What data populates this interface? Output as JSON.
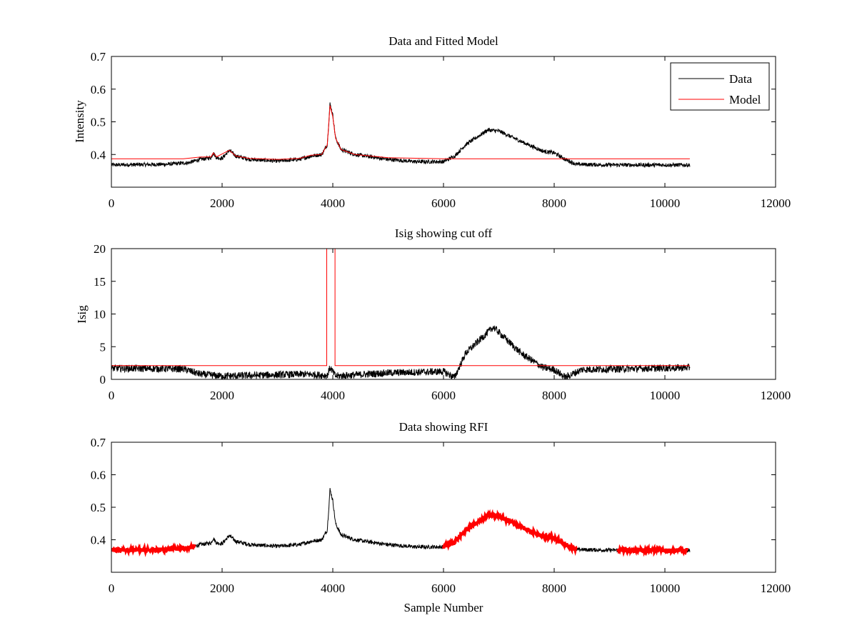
{
  "chart_data": [
    {
      "type": "line",
      "title": "Data and Fitted Model",
      "xlabel": "",
      "ylabel": "Intensity",
      "xlim": [
        0,
        12000
      ],
      "ylim": [
        0.3,
        0.7
      ],
      "xticks": [
        0,
        2000,
        4000,
        6000,
        8000,
        10000,
        12000
      ],
      "yticks": [
        0.4,
        0.5,
        0.6,
        0.7
      ],
      "legend": {
        "placement": "top-right",
        "entries": [
          "Data",
          "Model"
        ]
      },
      "series": [
        {
          "name": "Data",
          "color": "#000000",
          "noise": 0.006,
          "x": [
            0,
            1000,
            1400,
            1600,
            1800,
            1840,
            1900,
            2000,
            2130,
            2250,
            2500,
            3000,
            3400,
            3600,
            3800,
            3900,
            3950,
            4000,
            4050,
            4150,
            4400,
            5000,
            5500,
            6000,
            6200,
            6400,
            6800,
            7000,
            7400,
            7800,
            8000,
            8200,
            8400,
            9000,
            10450
          ],
          "y": [
            0.368,
            0.37,
            0.375,
            0.385,
            0.39,
            0.405,
            0.39,
            0.388,
            0.413,
            0.395,
            0.385,
            0.38,
            0.385,
            0.395,
            0.4,
            0.43,
            0.555,
            0.52,
            0.45,
            0.415,
            0.4,
            0.385,
            0.378,
            0.378,
            0.395,
            0.43,
            0.475,
            0.472,
            0.44,
            0.41,
            0.405,
            0.385,
            0.37,
            0.368,
            0.368
          ]
        },
        {
          "name": "Model",
          "color": "#ff0000",
          "noise": 0,
          "x": [
            0,
            1300,
            1600,
            1800,
            1840,
            1900,
            2130,
            2250,
            2500,
            3000,
            3400,
            3600,
            3800,
            3900,
            3950,
            4000,
            4050,
            4150,
            4400,
            5000,
            6000,
            10450
          ],
          "y": [
            0.387,
            0.387,
            0.392,
            0.393,
            0.405,
            0.393,
            0.413,
            0.395,
            0.388,
            0.385,
            0.388,
            0.398,
            0.4,
            0.43,
            0.55,
            0.515,
            0.45,
            0.415,
            0.4,
            0.39,
            0.387,
            0.387
          ]
        }
      ]
    },
    {
      "type": "line",
      "title": "Isig showing cut off",
      "xlabel": "",
      "ylabel": "Isig",
      "xlim": [
        0,
        12000
      ],
      "ylim": [
        0,
        20
      ],
      "xticks": [
        0,
        2000,
        4000,
        6000,
        8000,
        10000,
        12000
      ],
      "yticks": [
        0,
        5,
        10,
        15,
        20
      ],
      "series": [
        {
          "name": "Isig",
          "color": "#000000",
          "noise": 0.55,
          "x": [
            0,
            1300,
            1600,
            2000,
            3500,
            3900,
            3950,
            4050,
            5000,
            6000,
            6200,
            6400,
            6900,
            7400,
            7800,
            8000,
            8200,
            8500,
            10450
          ],
          "y": [
            1.7,
            1.6,
            0.8,
            0.5,
            0.8,
            0.6,
            1.8,
            0.5,
            1.0,
            1.2,
            0.3,
            4,
            8,
            4,
            1.8,
            1.5,
            0.3,
            1.5,
            1.8
          ]
        },
        {
          "name": "Cutoff",
          "color": "#ff0000",
          "level": 2.1,
          "gap": [
            3890,
            4040
          ],
          "xmax": 10450
        }
      ]
    },
    {
      "type": "line",
      "title": "Data showing RFI",
      "xlabel": "Sample Number",
      "ylabel": "",
      "xlim": [
        0,
        12000
      ],
      "ylim": [
        0.3,
        0.7
      ],
      "xticks": [
        0,
        2000,
        4000,
        6000,
        8000,
        10000,
        12000
      ],
      "yticks": [
        0.4,
        0.5,
        0.6,
        0.7
      ],
      "series": [
        {
          "name": "Data",
          "color": "#000000",
          "same_as": "Data"
        },
        {
          "name": "RFI",
          "color": "#ff0000",
          "ranges": [
            [
              0,
              1500
            ],
            [
              6000,
              8400
            ],
            [
              9150,
              10400
            ]
          ]
        }
      ]
    }
  ]
}
